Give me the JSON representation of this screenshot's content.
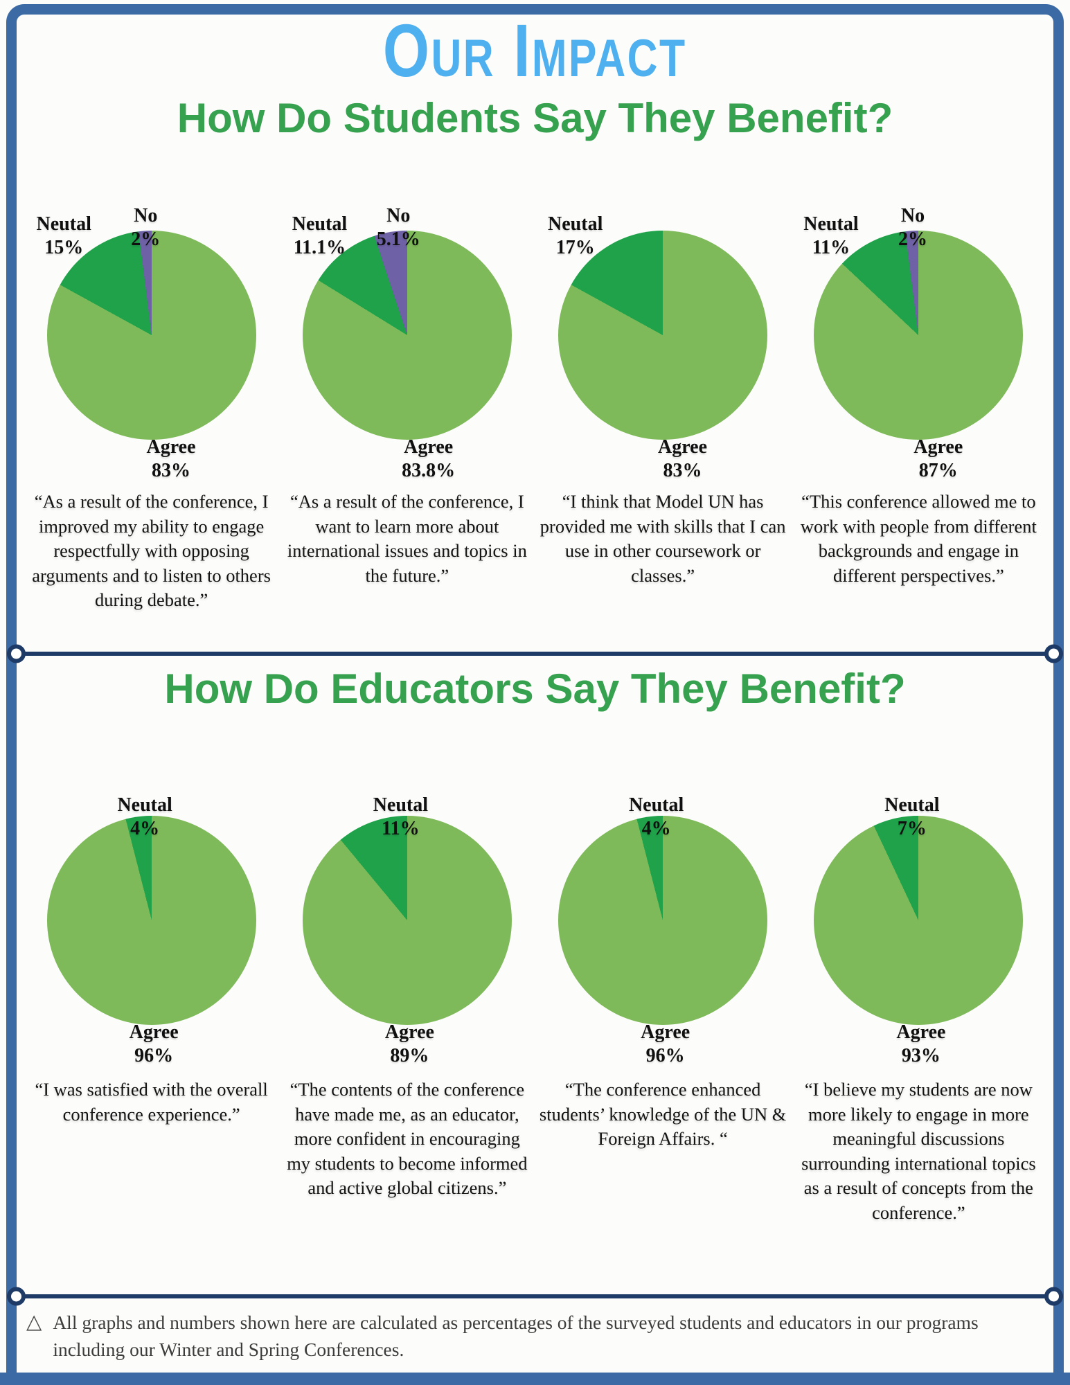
{
  "title": "Our Impact",
  "sections": [
    {
      "heading": "How Do Students Say They Benefit?"
    },
    {
      "heading": "How Do Educators Say They Benefit?"
    }
  ],
  "footer": {
    "marker": "△",
    "text": "All graphs and numbers shown here are calculated as percentages of the surveyed students and educators in our programs including our Winter and Spring Conferences."
  },
  "colors": {
    "title_blue": "#4fb0f0",
    "heading_green": "#36a14e",
    "frame_blue": "#3b6aa5",
    "divider_navy": "#1e3a67",
    "agree_green": "#7eba59",
    "neutral_green": "#1fa24a",
    "no_purple": "#6f61a6"
  },
  "chart_data": [
    {
      "type": "pie",
      "group": "students",
      "slices": [
        {
          "label": "Agree",
          "value": 83,
          "display": "83%",
          "color": "#7eba59"
        },
        {
          "label": "Neutal",
          "value": 15,
          "display": "15%",
          "color": "#1fa24a"
        },
        {
          "label": "No",
          "value": 2,
          "display": "2%",
          "color": "#6f61a6"
        }
      ],
      "quote": "“As a result of the conference, I improved my ability to engage respectfully with opposing arguments and to listen to others during debate.”"
    },
    {
      "type": "pie",
      "group": "students",
      "slices": [
        {
          "label": "Agree",
          "value": 83.8,
          "display": "83.8%",
          "color": "#7eba59"
        },
        {
          "label": "Neutal",
          "value": 11.1,
          "display": "11.1%",
          "color": "#1fa24a"
        },
        {
          "label": "No",
          "value": 5.1,
          "display": "5.1%",
          "color": "#6f61a6"
        }
      ],
      "quote": "“As a result of the conference, I want to learn more about international issues and topics in the future.”"
    },
    {
      "type": "pie",
      "group": "students",
      "slices": [
        {
          "label": "Agree",
          "value": 83,
          "display": "83%",
          "color": "#7eba59"
        },
        {
          "label": "Neutal",
          "value": 17,
          "display": "17%",
          "color": "#1fa24a"
        }
      ],
      "quote": "“I think that Model UN has provided me with skills that I can use in other coursework or classes.”"
    },
    {
      "type": "pie",
      "group": "students",
      "slices": [
        {
          "label": "Agree",
          "value": 87,
          "display": "87%",
          "color": "#7eba59"
        },
        {
          "label": "Neutal",
          "value": 11,
          "display": "11%",
          "color": "#1fa24a"
        },
        {
          "label": "No",
          "value": 2,
          "display": "2%",
          "color": "#6f61a6"
        }
      ],
      "quote": "“This conference allowed me to work with people from different backgrounds and engage in different perspectives.”"
    },
    {
      "type": "pie",
      "group": "educators",
      "slices": [
        {
          "label": "Agree",
          "value": 96,
          "display": "96%",
          "color": "#7eba59"
        },
        {
          "label": "Neutal",
          "value": 4,
          "display": "4%",
          "color": "#1fa24a"
        }
      ],
      "quote": "“I was satisfied with the overall conference experience.”"
    },
    {
      "type": "pie",
      "group": "educators",
      "slices": [
        {
          "label": "Agree",
          "value": 89,
          "display": "89%",
          "color": "#7eba59"
        },
        {
          "label": "Neutal",
          "value": 11,
          "display": "11%",
          "color": "#1fa24a"
        }
      ],
      "quote": "“The contents of the conference have made me, as an educator, more confident in encouraging my students to become informed and active global citizens.”"
    },
    {
      "type": "pie",
      "group": "educators",
      "slices": [
        {
          "label": "Agree",
          "value": 96,
          "display": "96%",
          "color": "#7eba59"
        },
        {
          "label": "Neutal",
          "value": 4,
          "display": "4%",
          "color": "#1fa24a"
        }
      ],
      "quote": "“The conference enhanced students’ knowledge of the UN & Foreign Affairs. “"
    },
    {
      "type": "pie",
      "group": "educators",
      "slices": [
        {
          "label": "Agree",
          "value": 93,
          "display": "93%",
          "color": "#7eba59"
        },
        {
          "label": "Neutal",
          "value": 7,
          "display": "7%",
          "color": "#1fa24a"
        }
      ],
      "quote": "“I believe my students are now more likely to engage in more meaningful discussions surrounding international topics as a result of concepts from the conference.”"
    }
  ]
}
